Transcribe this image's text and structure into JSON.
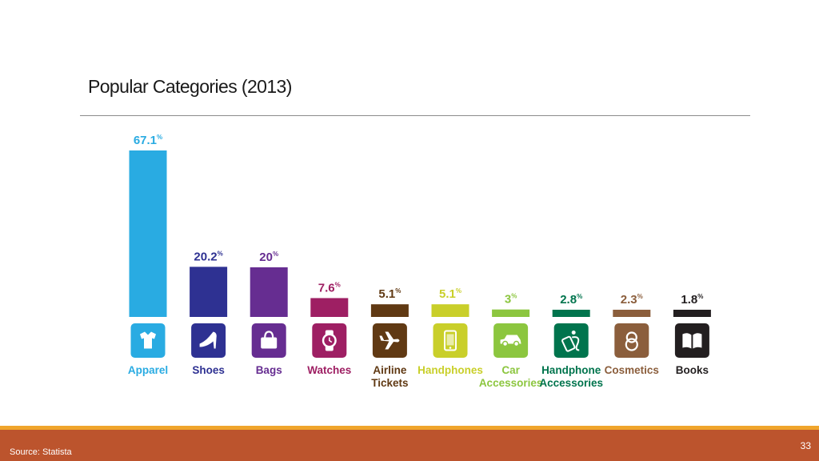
{
  "slide": {
    "title": "Popular Categories (2013)",
    "source": "Source: Statista",
    "page_number": "33"
  },
  "colors": {
    "footer": "#bc542d",
    "footer_accent": "#f0a52c"
  },
  "chart_data": {
    "type": "bar",
    "title": "Popular Categories (2013)",
    "xlabel": "",
    "ylabel": "",
    "ylim": [
      0,
      67.1
    ],
    "categories": [
      {
        "label": [
          "Apparel"
        ],
        "value": 67.1,
        "display": "67.1",
        "color": "#29abe2",
        "icon": "shirt-icon"
      },
      {
        "label": [
          "Shoes"
        ],
        "value": 20.2,
        "display": "20.2",
        "color": "#2e3192",
        "icon": "high-heel-icon"
      },
      {
        "label": [
          "Bags"
        ],
        "value": 20,
        "display": "20",
        "color": "#662d91",
        "icon": "handbag-icon"
      },
      {
        "label": [
          "Watches"
        ],
        "value": 7.6,
        "display": "7.6",
        "color": "#9e1f63",
        "icon": "watch-icon"
      },
      {
        "label": [
          "Airline",
          "Tickets"
        ],
        "value": 5.1,
        "display": "5.1",
        "color": "#603913",
        "icon": "airplane-icon"
      },
      {
        "label": [
          "Handphones"
        ],
        "value": 5.1,
        "display": "5.1",
        "color": "#c9cf2a",
        "icon": "phone-icon"
      },
      {
        "label": [
          "Car",
          "Accessories"
        ],
        "value": 3,
        "display": "3",
        "color": "#8cc63f",
        "icon": "car-icon"
      },
      {
        "label": [
          "Handphone",
          "Accessories"
        ],
        "value": 2.8,
        "display": "2.8",
        "color": "#00744d",
        "icon": "phone-accessory-icon"
      },
      {
        "label": [
          "Cosmetics"
        ],
        "value": 2.3,
        "display": "2.3",
        "color": "#8b5e3c",
        "icon": "compact-mirror-icon"
      },
      {
        "label": [
          "Books"
        ],
        "value": 1.8,
        "display": "1.8",
        "color": "#231f20",
        "icon": "book-icon"
      }
    ],
    "value_suffix": "%"
  }
}
